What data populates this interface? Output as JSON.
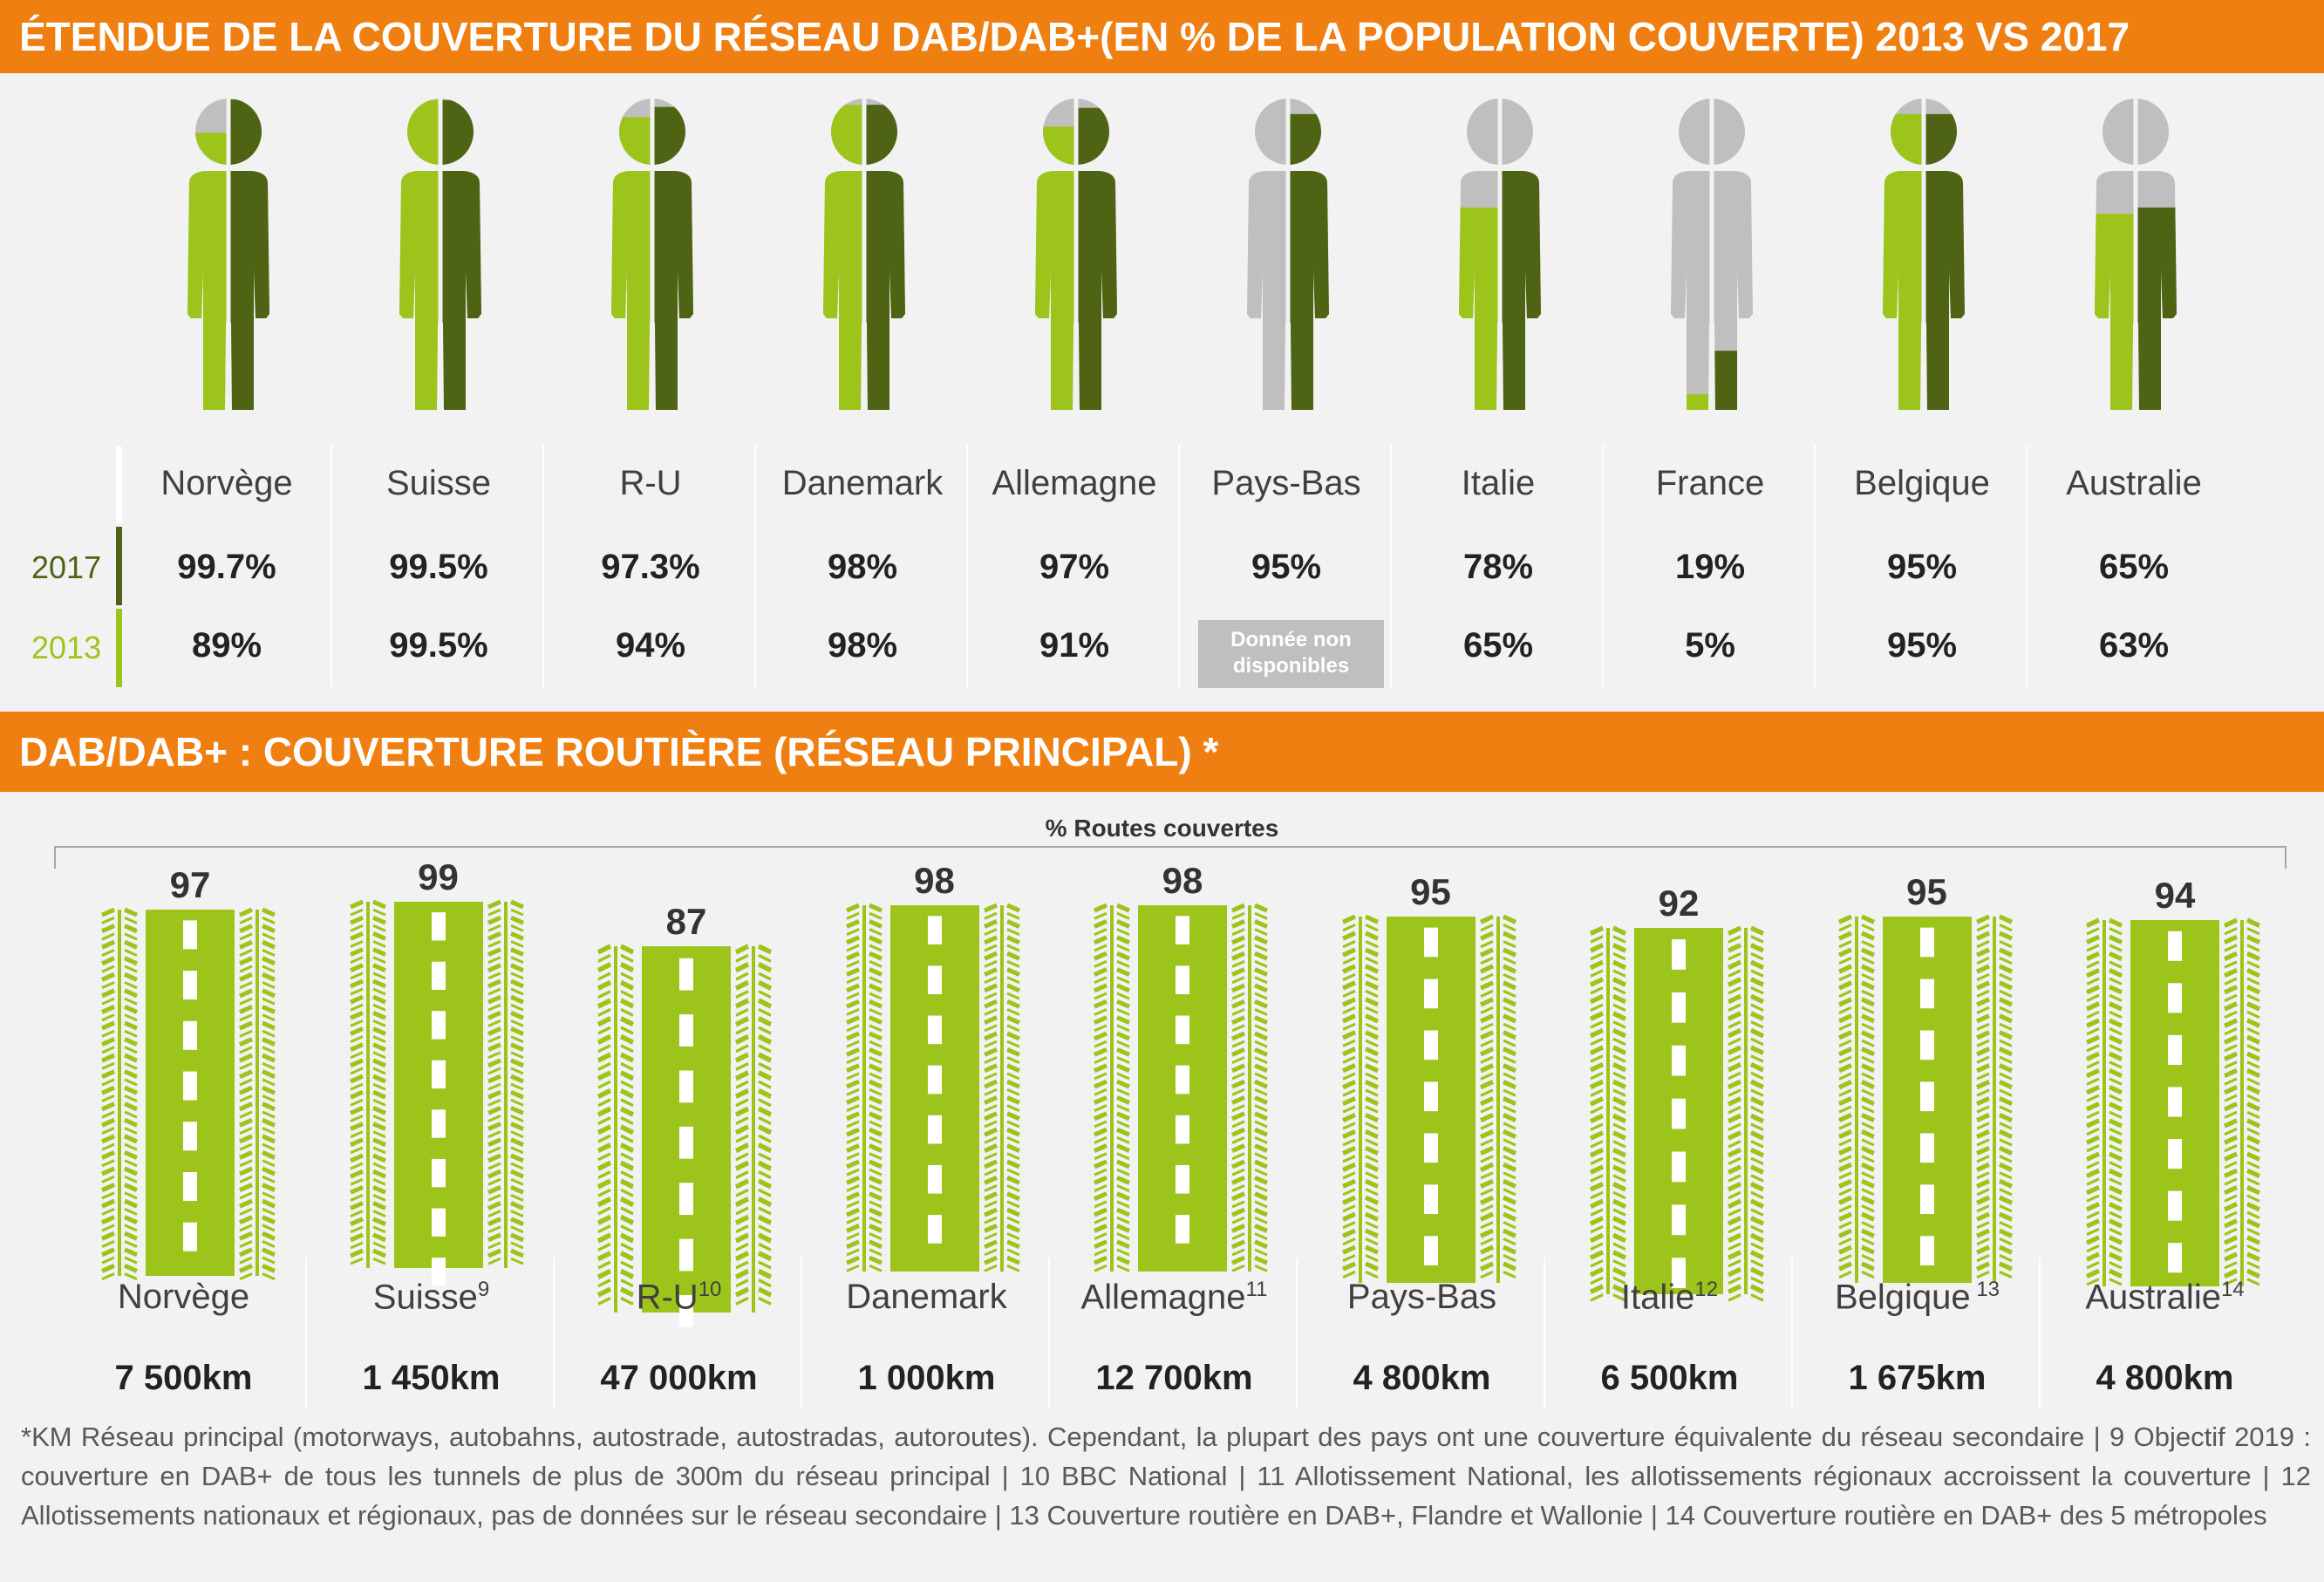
{
  "colors": {
    "orange": "#f07f12",
    "light_green": "#9dc41a",
    "dark_green": "#4e6414",
    "grey": "#bfbfbf"
  },
  "banner_top": "ÉTENDUE DE LA COUVERTURE DU RÉSEAU DAB/DAB+(EN % DE LA POPULATION COUVERTE) 2013 VS 2017",
  "banner_bottom": "DAB/DAB+ : COUVERTURE ROUTIÈRE (RÉSEAU PRINCIPAL) *",
  "year_2017": "2017",
  "year_2013": "2013",
  "no_data_label": "Donnée non disponibles",
  "routes_title": "% Routes couvertes",
  "footnote": "*KM Réseau principal (motorways, autobahns, autostrade, autostradas, autoroutes). Cependant, la plupart des pays ont une couverture équivalente du réseau secondaire | 9 Objectif 2019 : couverture en DAB+ de tous les tunnels de plus de 300m du réseau principal | 10 BBC National | 11 Allotissement National, les allotissements régionaux accroissent la couverture | 12 Allotissements nationaux et régionaux, pas de données sur le réseau secondaire | 13  Couverture routière en DAB+, Flandre et Wallonie | 14 Couverture routière en DAB+ des 5 métropoles",
  "chart_data": [
    {
      "type": "table",
      "title": "ÉTENDUE DE LA COUVERTURE DU RÉSEAU DAB/DAB+(EN % DE LA POPULATION COUVERTE) 2013 VS 2017",
      "categories": [
        "Norvège",
        "Suisse",
        "R-U",
        "Danemark",
        "Allemagne",
        "Pays-Bas",
        "Italie",
        "France",
        "Belgique",
        "Australie"
      ],
      "series": [
        {
          "name": "2017",
          "values": [
            99.7,
            99.5,
            97.3,
            98,
            97,
            95,
            78,
            19,
            95,
            65
          ],
          "labels": [
            "99.7%",
            "99.5%",
            "97.3%",
            "98%",
            "97%",
            "95%",
            "78%",
            "19%",
            "95%",
            "65%"
          ]
        },
        {
          "name": "2013",
          "values": [
            89,
            99.5,
            94,
            98,
            91,
            null,
            65,
            5,
            95,
            63
          ],
          "labels": [
            "89%",
            "99.5%",
            "94%",
            "98%",
            "91%",
            null,
            "65%",
            "5%",
            "95%",
            "63%"
          ]
        }
      ]
    },
    {
      "type": "bar",
      "title": "DAB/DAB+ : COUVERTURE ROUTIÈRE (RÉSEAU PRINCIPAL) *",
      "ylabel": "% Routes couvertes",
      "categories": [
        "Norvège",
        "Suisse",
        "R-U",
        "Danemark",
        "Allemagne",
        "Pays-Bas",
        "Italie",
        "Belgique",
        "Australie"
      ],
      "footnote_marks": [
        "",
        "9",
        "10",
        "",
        "11",
        "",
        "12",
        " 13",
        "14"
      ],
      "values": [
        97,
        99,
        87,
        98,
        98,
        95,
        92,
        95,
        94
      ],
      "km": [
        "7 500km",
        "1 450km",
        "47 000km",
        "1 000km",
        "12 700km",
        "4 800km",
        "6 500km",
        "1 675km",
        "4 800km"
      ]
    }
  ]
}
